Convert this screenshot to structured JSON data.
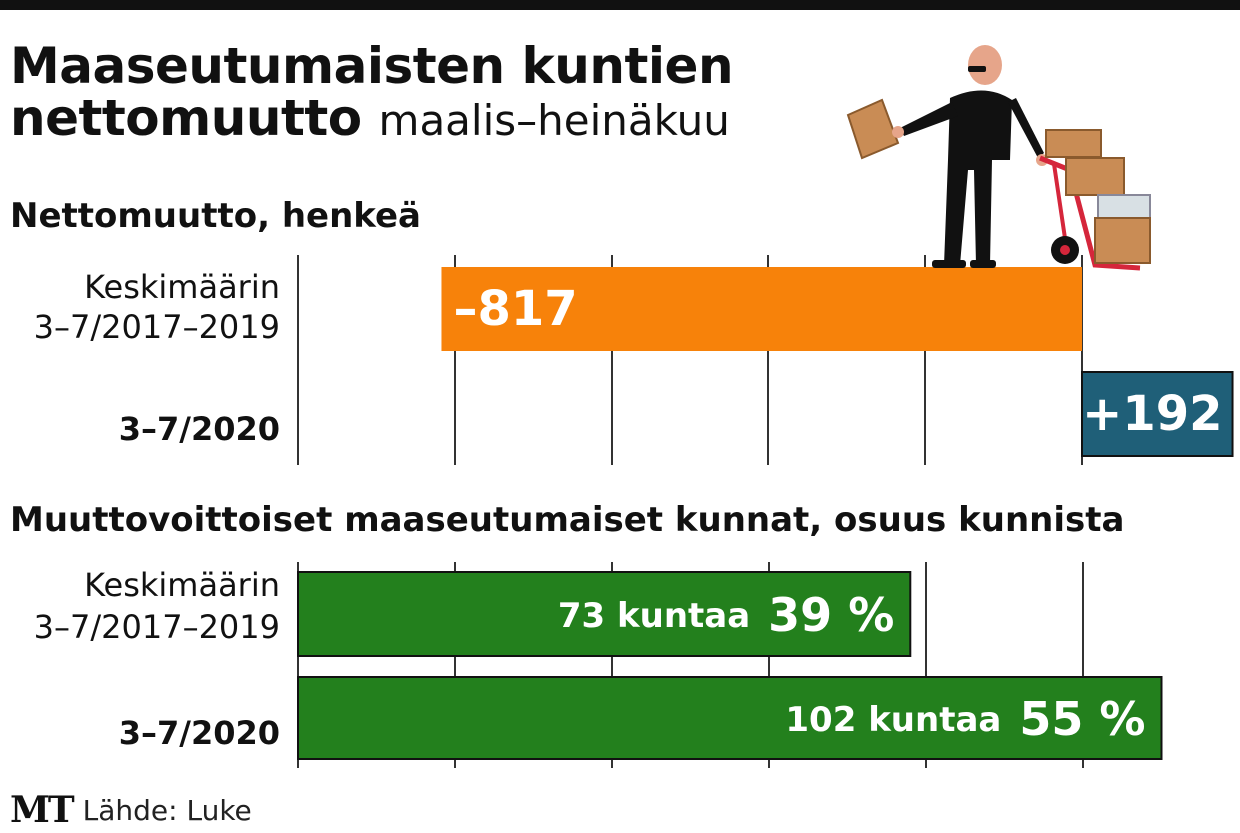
{
  "title": {
    "main": "Maaseutumaisten kuntien",
    "line2_bold": "nettomuutto",
    "line2_light": "maalis–heinäkuu"
  },
  "footer": {
    "logo": "MT",
    "source": "Lähde: Luke"
  },
  "colors": {
    "negative": "#f7820a",
    "positive": "#1f5f78",
    "share": "#23801d",
    "grid": "#333333"
  },
  "illustration": {
    "name": "mover-icon"
  },
  "chart_data": [
    {
      "type": "bar",
      "title": "Nettomuutto, henkeä",
      "orientation": "horizontal",
      "categories": [
        [
          "Keskimäärin",
          "3–7/2017–2019"
        ],
        [
          "3–7/2020"
        ]
      ],
      "category_bold": [
        false,
        true
      ],
      "values": [
        -817,
        192
      ],
      "labels": [
        "–817",
        "+192"
      ],
      "colors": [
        "#f7820a",
        "#1f5f78"
      ],
      "xlim": [
        -1000,
        200
      ],
      "grid_step": 200,
      "grid": true
    },
    {
      "type": "bar",
      "title": "Muuttovoittoiset maaseutumaiset kunnat, osuus kunnista",
      "orientation": "horizontal",
      "categories": [
        [
          "Keskimäärin",
          "3–7/2017–2019"
        ],
        [
          "3–7/2020"
        ]
      ],
      "category_bold": [
        false,
        true
      ],
      "values": [
        39,
        55
      ],
      "counts": [
        "73 kuntaa",
        "102 kuntaa"
      ],
      "labels": [
        "39 %",
        "55 %"
      ],
      "color": "#23801d",
      "xlim": [
        0,
        60
      ],
      "grid_step": 10,
      "grid": true
    }
  ]
}
